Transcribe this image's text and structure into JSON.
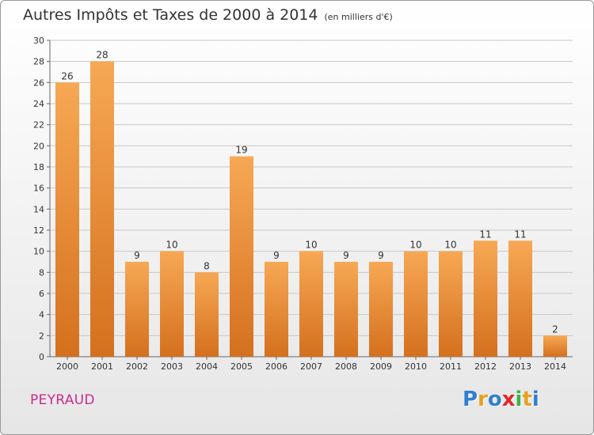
{
  "title": "Autres Impôts et Taxes de 2000 à 2014",
  "subtitle": "(en milliers d'€)",
  "commune": "PEYRAUD",
  "brand": {
    "letters": [
      "P",
      "r",
      "o",
      "x",
      "i",
      "t",
      "i"
    ],
    "colors": [
      "#2f7fd1",
      "#e8a020",
      "#2f7fd1",
      "#e02828",
      "#3ab44a",
      "#e8a020",
      "#2f7fd1"
    ]
  },
  "colors": {
    "bar_top": "#f7a854",
    "bar_bottom": "#d4701e",
    "grid": "#c8c8c8",
    "axis": "#666666",
    "text": "#333333"
  },
  "chart_data": {
    "type": "bar",
    "title": "Autres Impôts et Taxes de 2000 à 2014",
    "subtitle": "(en milliers d'€)",
    "categories": [
      "2000",
      "2001",
      "2002",
      "2003",
      "2004",
      "2005",
      "2006",
      "2007",
      "2008",
      "2009",
      "2010",
      "2011",
      "2012",
      "2013",
      "2014"
    ],
    "values": [
      26,
      28,
      9,
      10,
      8,
      19,
      9,
      10,
      9,
      9,
      10,
      10,
      11,
      11,
      2
    ],
    "ylim": [
      0,
      30
    ],
    "yticks": [
      0,
      2,
      4,
      6,
      8,
      10,
      12,
      14,
      16,
      18,
      20,
      22,
      24,
      26,
      28,
      30
    ],
    "grid": true,
    "xlabel": "",
    "ylabel": ""
  }
}
